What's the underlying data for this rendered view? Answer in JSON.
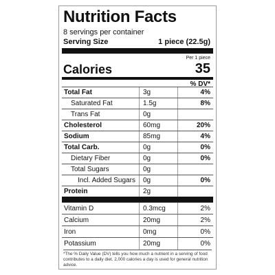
{
  "header": {
    "title": "Nutrition Facts",
    "servings": "8 servings per container",
    "serving_size_label": "Serving Size",
    "serving_size_value": "1 piece (22.5g)"
  },
  "calories": {
    "per_label": "Per 1 piece",
    "label": "Calories",
    "value": "35",
    "dv_header": "% DV*"
  },
  "nutrients": [
    [
      "Total Fat",
      "3g",
      "4%"
    ],
    [
      "Saturated Fat",
      "1.5g",
      "8%"
    ],
    [
      "Trans Fat",
      "0g"
    ],
    [
      "Cholesterol",
      "60mg",
      "20%"
    ],
    [
      "Sodium",
      "85mg",
      "4%"
    ],
    [
      "Total Carb.",
      "0g",
      "0%"
    ],
    [
      "Dietary Fiber",
      "0g",
      "0%"
    ],
    [
      "Total Sugars",
      "0g"
    ],
    [
      "Incl. Added Sugars",
      "0g",
      "0%"
    ],
    [
      "Protein",
      "2g"
    ]
  ],
  "vitamins": [
    [
      "Vitamin D",
      "0.3mcg",
      "2%"
    ],
    [
      "Calcium",
      "20mg",
      "2%"
    ],
    [
      "Iron",
      "0mg",
      "0%"
    ],
    [
      "Potassium",
      "20mg",
      "0%"
    ]
  ],
  "footnote": "*The % Daily Value (DV) tells you how much a nutrient in a serving of food contributes to a daily diet. 2,000 calories a day is used for general nutrition advice."
}
